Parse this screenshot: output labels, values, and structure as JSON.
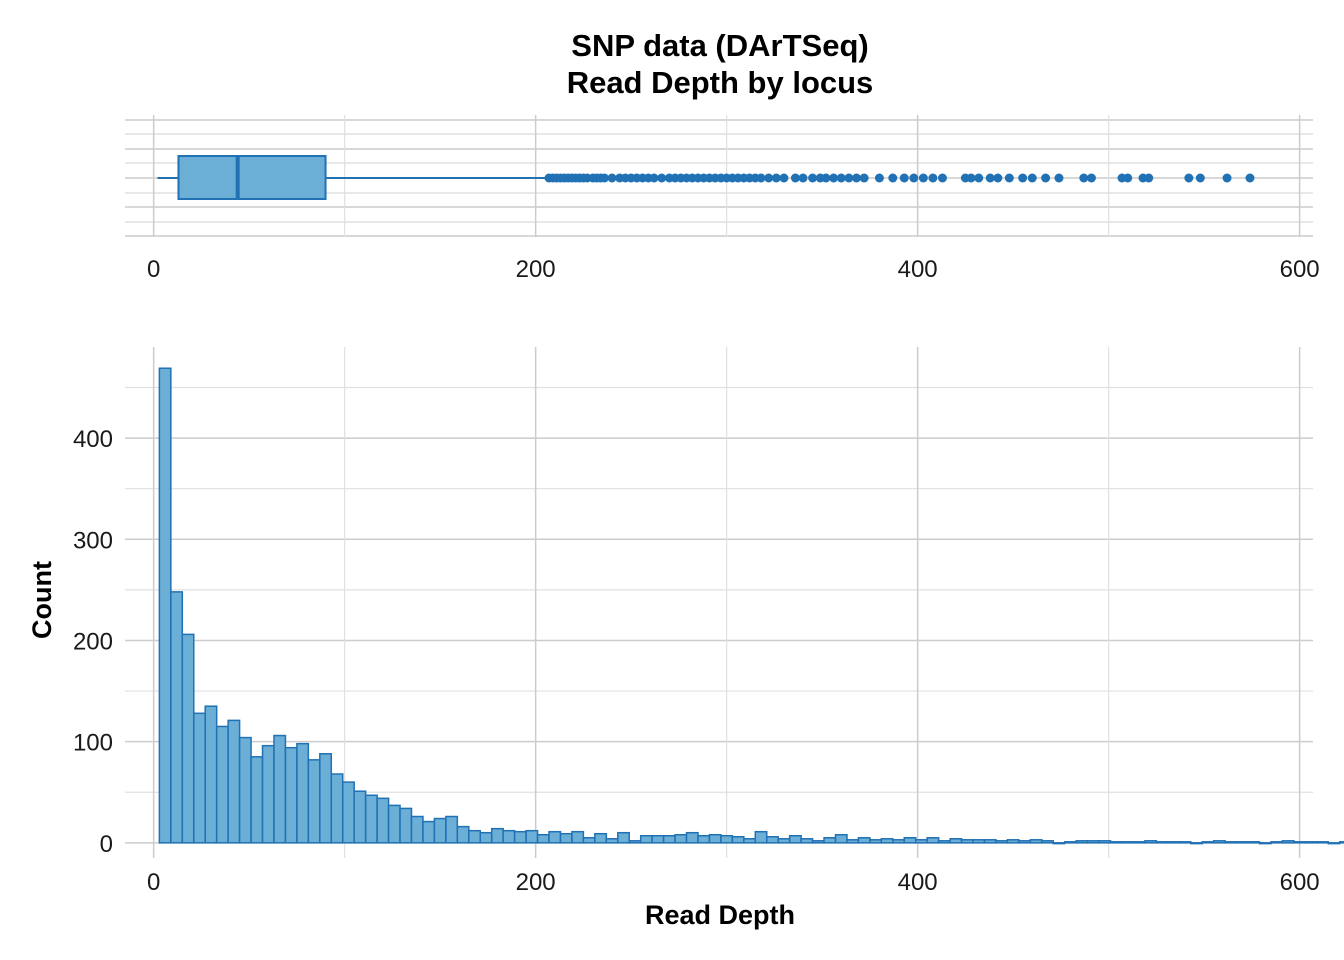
{
  "chart_data": [
    {
      "type": "box",
      "title": [
        "SNP data (DArTSeq)",
        "Read Depth by locus"
      ],
      "orientation": "horizontal",
      "xlim": [
        -15,
        607
      ],
      "xticks": [
        0,
        200,
        400,
        600
      ],
      "tick_labels": [
        "0",
        "200",
        "400",
        "600"
      ],
      "grid": true,
      "stats": {
        "lower_whisker": 2,
        "q1": 13,
        "median": 44,
        "q3": 90,
        "upper_whisker": 205
      },
      "outliers": [
        207,
        209,
        211,
        213,
        215,
        217,
        219,
        221,
        223,
        225,
        227,
        230,
        232,
        234,
        236,
        240,
        244,
        247,
        250,
        253,
        256,
        259,
        262,
        266,
        270,
        273,
        276,
        279,
        282,
        285,
        288,
        291,
        294,
        297,
        300,
        303,
        306,
        309,
        312,
        315,
        318,
        322,
        326,
        330,
        336,
        340,
        345,
        349,
        352,
        356,
        360,
        364,
        368,
        372,
        380,
        387,
        393,
        398,
        403,
        408,
        413,
        425,
        428,
        432,
        438,
        442,
        448,
        455,
        460,
        467,
        474,
        487,
        491,
        507,
        510,
        518,
        521,
        542,
        548,
        562,
        574
      ],
      "color": "#2171b5",
      "fill": "#6baed6"
    },
    {
      "type": "histogram",
      "xlabel": "Read Depth",
      "ylabel": "Count",
      "xlim": [
        -15,
        607
      ],
      "ylim": [
        -15,
        490
      ],
      "xticks": [
        0,
        200,
        400,
        600
      ],
      "yticks": [
        0,
        100,
        200,
        300,
        400
      ],
      "x_tick_labels": [
        "0",
        "200",
        "400",
        "600"
      ],
      "y_tick_labels": [
        "0",
        "100",
        "200",
        "300",
        "400"
      ],
      "grid": true,
      "bin_start": 3,
      "bin_width": 6,
      "counts": [
        469,
        248,
        206,
        128,
        135,
        115,
        121,
        104,
        85,
        96,
        106,
        94,
        98,
        82,
        88,
        68,
        60,
        51,
        47,
        44,
        37,
        34,
        26,
        21,
        24,
        26,
        16,
        12,
        10,
        14,
        12,
        11,
        12,
        8,
        11,
        9,
        11,
        5,
        9,
        4,
        10,
        2,
        7,
        7,
        7,
        8,
        10,
        7,
        8,
        7,
        6,
        4,
        11,
        6,
        4,
        7,
        4,
        2,
        5,
        8,
        3,
        5,
        3,
        4,
        3,
        5,
        3,
        5,
        2,
        4,
        3,
        3,
        3,
        2,
        3,
        2,
        3,
        2,
        0,
        1,
        2,
        2,
        2,
        1,
        1,
        1,
        2,
        1,
        1,
        1,
        0,
        1,
        2,
        1,
        1,
        1,
        0,
        1,
        2,
        1,
        1,
        1,
        0,
        1,
        1,
        0,
        1,
        0,
        1,
        0,
        1,
        0,
        0,
        1,
        0,
        0
      ],
      "color": "#2171b5",
      "fill": "#6baed6"
    }
  ]
}
